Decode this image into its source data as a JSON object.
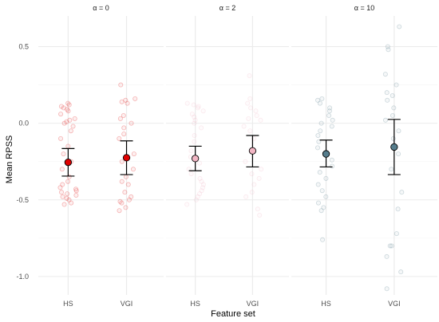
{
  "chart_data": {
    "type": "scatter",
    "title": "",
    "xlabel": "Feature set",
    "ylabel": "Mean RPSS",
    "ylim": [
      -1.12,
      0.7
    ],
    "y_ticks": [
      0.5,
      0.0,
      -0.5,
      -1.0
    ],
    "y_tick_labels": [
      "0.5",
      "0.0",
      "-0.5",
      "-1.0"
    ],
    "categories": [
      "HS",
      "VGI"
    ],
    "grid": true,
    "legend": "none",
    "facets": [
      {
        "title": "α = 0",
        "color": "#e00000",
        "groups": [
          {
            "category": "HS",
            "mean": -0.255,
            "ci_low": -0.345,
            "ci_high": -0.165,
            "points": [
              0.13,
              0.12,
              0.11,
              0.1,
              0.09,
              0.08,
              0.06,
              0.03,
              0.02,
              0.01,
              0.0,
              -0.02,
              -0.05,
              -0.1,
              -0.15,
              -0.2,
              -0.25,
              -0.3,
              -0.35,
              -0.38,
              -0.4,
              -0.42,
              -0.43,
              -0.44,
              -0.45,
              -0.46,
              -0.47,
              -0.48,
              -0.49,
              -0.5,
              -0.52,
              -0.53
            ]
          },
          {
            "category": "VGI",
            "mean": -0.225,
            "ci_low": -0.335,
            "ci_high": -0.115,
            "points": [
              0.25,
              0.16,
              0.15,
              0.14,
              0.13,
              0.05,
              0.03,
              0.0,
              -0.03,
              -0.07,
              -0.1,
              -0.2,
              -0.25,
              -0.3,
              -0.35,
              -0.38,
              -0.4,
              -0.45,
              -0.48,
              -0.5,
              -0.51,
              -0.52,
              -0.55,
              -0.57
            ]
          }
        ]
      },
      {
        "title": "α = 2",
        "color": "#f2b6c4",
        "groups": [
          {
            "category": "HS",
            "mean": -0.23,
            "ci_low": -0.31,
            "ci_high": -0.15,
            "points": [
              0.13,
              0.12,
              0.11,
              0.1,
              0.08,
              0.06,
              0.04,
              0.02,
              0.0,
              -0.03,
              -0.08,
              -0.12,
              -0.18,
              -0.22,
              -0.26,
              -0.3,
              -0.33,
              -0.36,
              -0.38,
              -0.4,
              -0.42,
              -0.44,
              -0.46,
              -0.48,
              -0.5,
              -0.53
            ]
          },
          {
            "category": "VGI",
            "mean": -0.18,
            "ci_low": -0.285,
            "ci_high": -0.08,
            "points": [
              0.31,
              0.16,
              0.13,
              0.1,
              0.08,
              0.05,
              0.03,
              0.02,
              -0.02,
              -0.05,
              -0.1,
              -0.18,
              -0.25,
              -0.3,
              -0.33,
              -0.36,
              -0.4,
              -0.45,
              -0.48,
              -0.56,
              -0.6
            ]
          }
        ]
      },
      {
        "title": "α = 10",
        "color": "#567d8c",
        "groups": [
          {
            "category": "HS",
            "mean": -0.2,
            "ci_low": -0.285,
            "ci_high": -0.11,
            "points": [
              0.16,
              0.15,
              0.13,
              0.1,
              0.08,
              0.05,
              0.02,
              0.0,
              -0.02,
              -0.05,
              -0.08,
              -0.12,
              -0.16,
              -0.2,
              -0.24,
              -0.28,
              -0.32,
              -0.36,
              -0.4,
              -0.44,
              -0.48,
              -0.52,
              -0.55,
              -0.57,
              -0.76
            ]
          },
          {
            "category": "VGI",
            "mean": -0.155,
            "ci_low": -0.335,
            "ci_high": 0.025,
            "points": [
              0.63,
              0.5,
              0.48,
              0.32,
              0.25,
              0.2,
              0.18,
              0.15,
              0.1,
              0.05,
              0.02,
              -0.05,
              -0.1,
              -0.2,
              -0.3,
              -0.45,
              -0.56,
              -0.72,
              -0.8,
              -0.8,
              -0.87,
              -0.97,
              -1.08
            ]
          }
        ]
      }
    ]
  }
}
